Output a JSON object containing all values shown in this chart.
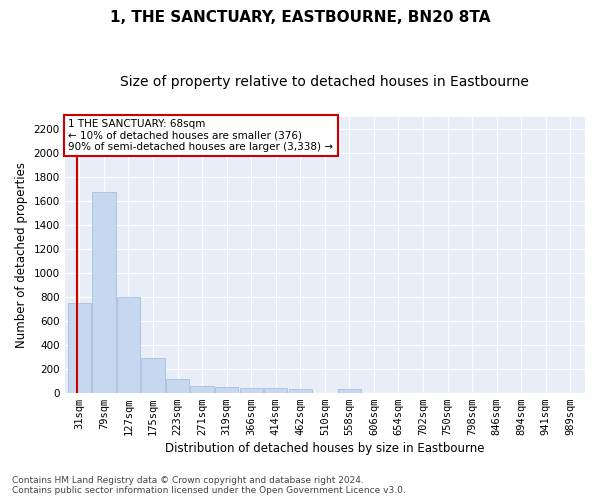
{
  "title": "1, THE SANCTUARY, EASTBOURNE, BN20 8TA",
  "subtitle": "Size of property relative to detached houses in Eastbourne",
  "xlabel": "Distribution of detached houses by size in Eastbourne",
  "ylabel": "Number of detached properties",
  "categories": [
    "31sqm",
    "79sqm",
    "127sqm",
    "175sqm",
    "223sqm",
    "271sqm",
    "319sqm",
    "366sqm",
    "414sqm",
    "462sqm",
    "510sqm",
    "558sqm",
    "606sqm",
    "654sqm",
    "702sqm",
    "750sqm",
    "798sqm",
    "846sqm",
    "894sqm",
    "941sqm",
    "989sqm"
  ],
  "values": [
    750,
    1670,
    800,
    290,
    110,
    55,
    45,
    35,
    40,
    30,
    0,
    30,
    0,
    0,
    0,
    0,
    0,
    0,
    0,
    0,
    0
  ],
  "bar_color": "#c5d8f0",
  "bar_edge_color": "#a0b8d8",
  "annotation_line1": "1 THE SANCTUARY: 68sqm",
  "annotation_line2": "← 10% of detached houses are smaller (376)",
  "annotation_line3": "90% of semi-detached houses are larger (3,338) →",
  "annotation_box_color": "#cc0000",
  "property_line_x": -0.1,
  "property_line_color": "#cc0000",
  "ylim": [
    0,
    2300
  ],
  "yticks": [
    0,
    200,
    400,
    600,
    800,
    1000,
    1200,
    1400,
    1600,
    1800,
    2000,
    2200
  ],
  "footnote": "Contains HM Land Registry data © Crown copyright and database right 2024.\nContains public sector information licensed under the Open Government Licence v3.0.",
  "background_color": "#e8eef8",
  "grid_color": "#ffffff",
  "title_fontsize": 11,
  "subtitle_fontsize": 10,
  "label_fontsize": 8.5,
  "tick_fontsize": 7.5,
  "footnote_fontsize": 6.5
}
